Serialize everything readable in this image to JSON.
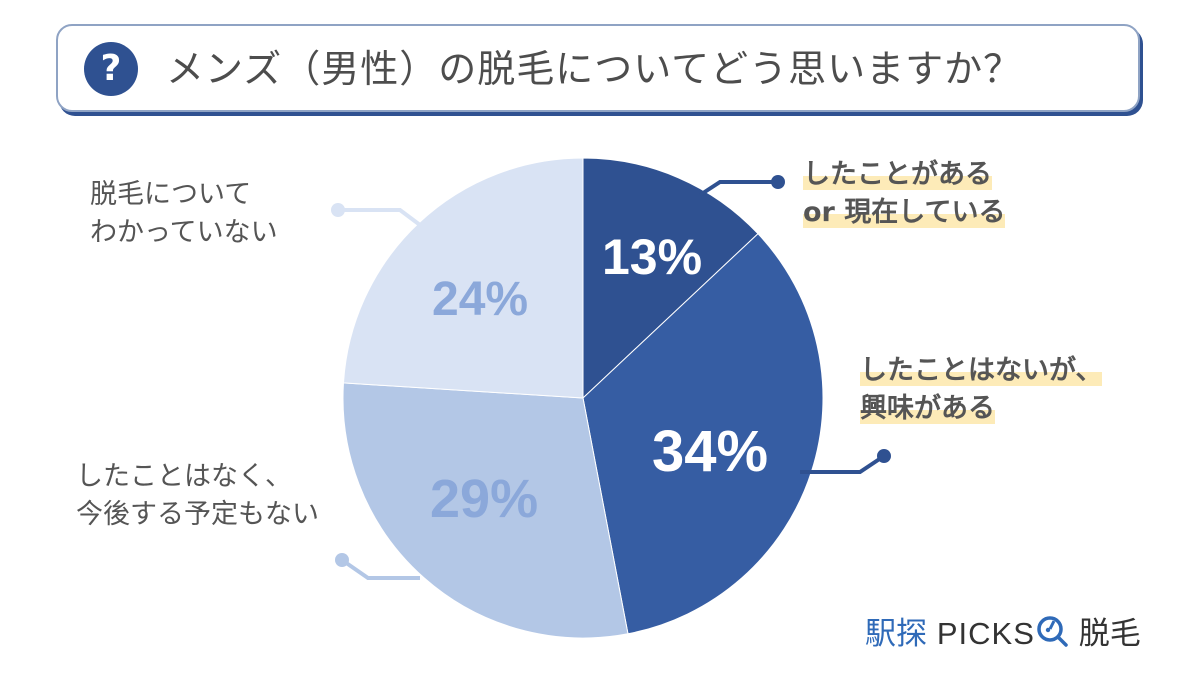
{
  "header": {
    "icon": "question-icon",
    "icon_glyph": "?",
    "title": "メンズ（男性）の脱毛についてどう思いますか？"
  },
  "chart_data": {
    "type": "pie",
    "title": "メンズ（男性）の脱毛についてどう思いますか？",
    "start_angle": "12 o'clock, clockwise",
    "slices": [
      {
        "label": "したことがある or 現在している",
        "value": 13,
        "color": "#2f5191",
        "pct_color": "#ffffff"
      },
      {
        "label": "したことはないが、興味がある",
        "value": 34,
        "color": "#365da3",
        "pct_color": "#ffffff"
      },
      {
        "label": "したことはなく、今後する予定もない",
        "value": 29,
        "color": "#b3c7e6",
        "pct_color": "#8ba8da"
      },
      {
        "label": "脱毛についてわかっていない",
        "value": 24,
        "color": "#d9e3f4",
        "pct_color": "#8ba8da"
      }
    ]
  },
  "labels": {
    "s1": {
      "line1": "したことがある",
      "line2": "or 現在している",
      "pct": "13%"
    },
    "s2": {
      "line1": "したことはないが、",
      "line2": "興味がある",
      "pct": "34%"
    },
    "s3": {
      "line1": "したことはなく、",
      "line2": "今後する予定もない",
      "pct": "29%"
    },
    "s4": {
      "line1": "脱毛について",
      "line2": "わかっていない",
      "pct": "24%"
    }
  },
  "logo": {
    "part1": "駅探",
    "part2": "PICKS",
    "icon": "search-clock-icon",
    "part3": "脱毛"
  }
}
